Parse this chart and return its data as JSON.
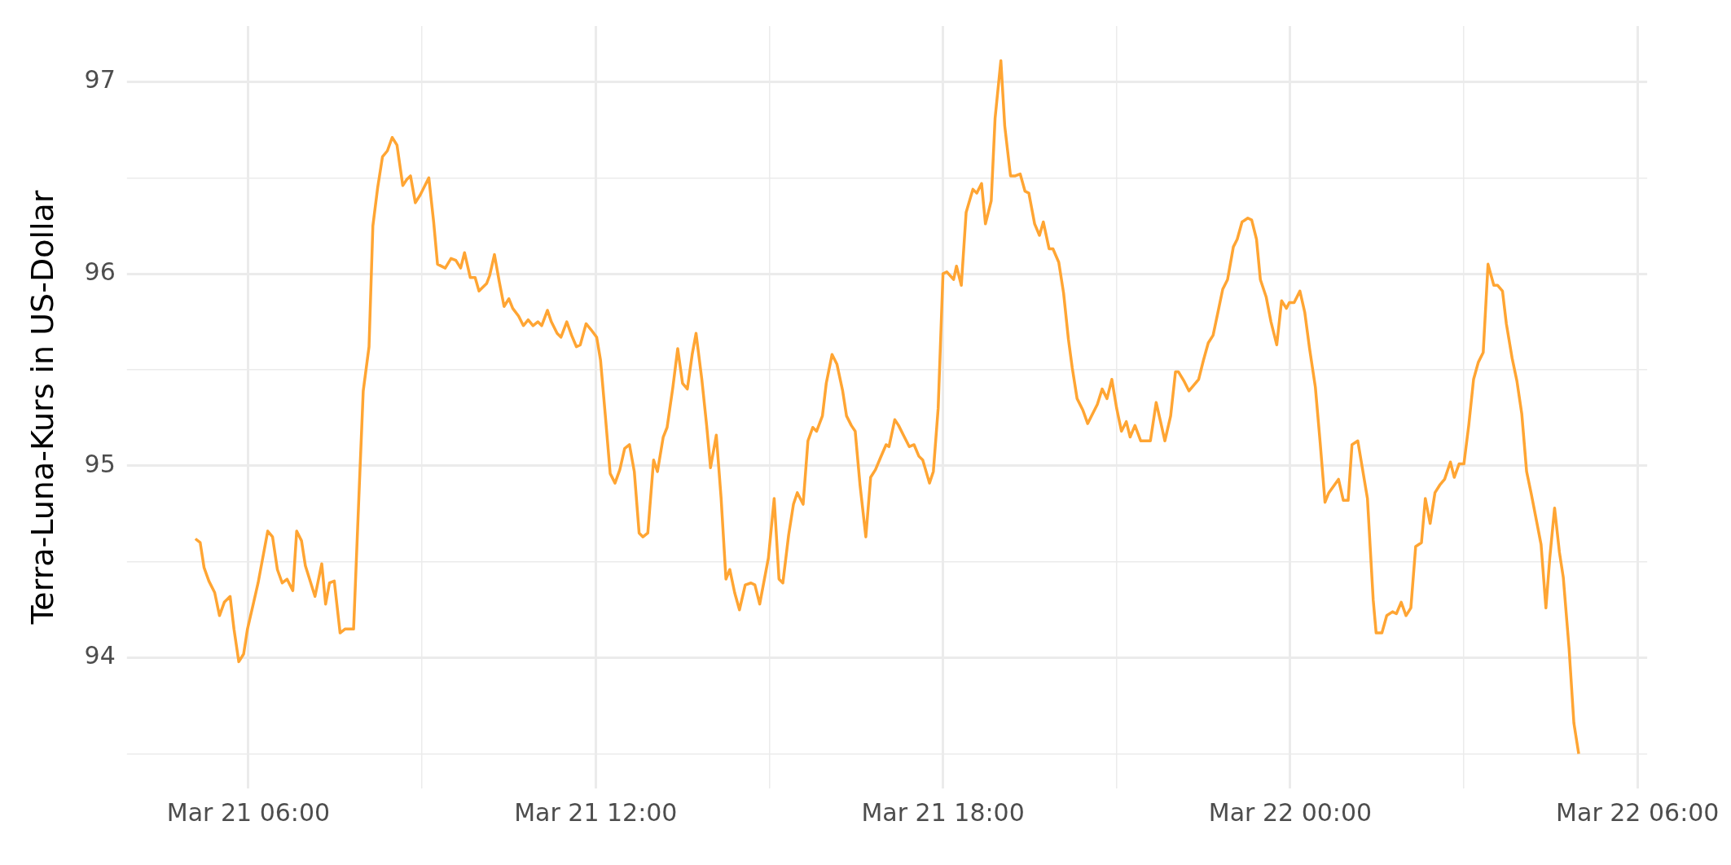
{
  "chart_data": {
    "type": "line",
    "ylabel": "Terra-Luna-Kurs in US-Dollar",
    "grid": true,
    "legend": false,
    "marker": "none",
    "line_style": "solid",
    "xlim": [
      "--03-21T03:54",
      "--03-22T06:10"
    ],
    "ylim": [
      93.32,
      97.29
    ],
    "xticks": [
      {
        "value": "--03-21T06:00",
        "label": "Mar 21 06:00"
      },
      {
        "value": "--03-21T09:00",
        "label": null
      },
      {
        "value": "--03-21T12:00",
        "label": "Mar 21 12:00"
      },
      {
        "value": "--03-21T15:00",
        "label": null
      },
      {
        "value": "--03-21T18:00",
        "label": "Mar 21 18:00"
      },
      {
        "value": "--03-21T21:00",
        "label": null
      },
      {
        "value": "--03-22T00:00",
        "label": "Mar 22 00:00"
      },
      {
        "value": "--03-22T03:00",
        "label": null
      },
      {
        "value": "--03-22T06:00",
        "label": "Mar 22 06:00"
      }
    ],
    "yticks": [
      {
        "value": 93.5,
        "label": null
      },
      94,
      {
        "value": 94.5,
        "label": null
      },
      95,
      {
        "value": 95.5,
        "label": null
      },
      96,
      {
        "value": 96.5,
        "label": null
      },
      97
    ],
    "series": [
      {
        "color": "#ffa533",
        "x": [
          "--03-21T05:05",
          "--03-21T05:10",
          "--03-21T05:14",
          "--03-21T05:19",
          "--03-21T05:25",
          "--03-21T05:30",
          "--03-21T05:35",
          "--03-21T05:41",
          "--03-21T05:45",
          "--03-21T05:50",
          "--03-21T05:55",
          "--03-21T05:59",
          "--03-21T06:05",
          "--03-21T06:10",
          "--03-21T06:20",
          "--03-21T06:25",
          "--03-21T06:30",
          "--03-21T06:35",
          "--03-21T06:40",
          "--03-21T06:46",
          "--03-21T06:50",
          "--03-21T06:55",
          "--03-21T06:59",
          "--03-21T07:09",
          "--03-21T07:16",
          "--03-21T07:20",
          "--03-21T07:24",
          "--03-21T07:29",
          "--03-21T07:35",
          "--03-21T07:40",
          "--03-21T07:49",
          "--03-21T07:55",
          "--03-21T07:59",
          "--03-21T08:05",
          "--03-21T08:09",
          "--03-21T08:14",
          "--03-21T08:19",
          "--03-21T08:24",
          "--03-21T08:29",
          "--03-21T08:34",
          "--03-21T08:40",
          "--03-21T08:44",
          "--03-21T08:48",
          "--03-21T08:53",
          "--03-21T08:58",
          "--03-21T09:07",
          "--03-21T09:12",
          "--03-21T09:16",
          "--03-21T09:24",
          "--03-21T09:30",
          "--03-21T09:35",
          "--03-21T09:40",
          "--03-21T09:44",
          "--03-21T09:50",
          "--03-21T09:55",
          "--03-21T09:59",
          "--03-21T10:07",
          "--03-21T10:10",
          "--03-21T10:15",
          "--03-21T10:20",
          "--03-21T10:25",
          "--03-21T10:30",
          "--03-21T10:34",
          "--03-21T10:40",
          "--03-21T10:45",
          "--03-21T10:50",
          "--03-21T10:55",
          "--03-21T11:00",
          "--03-21T11:04",
          "--03-21T11:10",
          "--03-21T11:14",
          "--03-21T11:20",
          "--03-21T11:24",
          "--03-21T11:30",
          "--03-21T11:35",
          "--03-21T11:40",
          "--03-21T11:44",
          "--03-21T11:50",
          "--03-21T11:55",
          "--03-21T12:01",
          "--03-21T12:05",
          "--03-21T12:10",
          "--03-21T12:15",
          "--03-21T12:20",
          "--03-21T12:25",
          "--03-21T12:30",
          "--03-21T12:35",
          "--03-21T12:40",
          "--03-21T12:45",
          "--03-21T12:49",
          "--03-21T12:54",
          "--03-21T13:00",
          "--03-21T13:04",
          "--03-21T13:10",
          "--03-21T13:14",
          "--03-21T13:20",
          "--03-21T13:25",
          "--03-21T13:30",
          "--03-21T13:35",
          "--03-21T13:40",
          "--03-21T13:44",
          "--03-21T13:50",
          "--03-21T13:55",
          "--03-21T13:59",
          "--03-21T14:05",
          "--03-21T14:10",
          "--03-21T14:15",
          "--03-21T14:19",
          "--03-21T14:24",
          "--03-21T14:29",
          "--03-21T14:35",
          "--03-21T14:41",
          "--03-21T14:45",
          "--03-21T14:50",
          "--03-21T14:59",
          "--03-21T15:05",
          "--03-21T15:10",
          "--03-21T15:14",
          "--03-21T15:20",
          "--03-21T15:25",
          "--03-21T15:29",
          "--03-21T15:35",
          "--03-21T15:40",
          "--03-21T15:45",
          "--03-21T15:49",
          "--03-21T15:55",
          "--03-21T15:59",
          "--03-21T16:05",
          "--03-21T16:10",
          "--03-21T16:16",
          "--03-21T16:20",
          "--03-21T16:25",
          "--03-21T16:29",
          "--03-21T16:34",
          "--03-21T16:40",
          "--03-21T16:45",
          "--03-21T16:50",
          "--03-21T16:55",
          "--03-21T17:01",
          "--03-21T17:04",
          "--03-21T17:10",
          "--03-21T17:14",
          "--03-21T17:19",
          "--03-21T17:25",
          "--03-21T17:30",
          "--03-21T17:35",
          "--03-21T17:39",
          "--03-21T17:46",
          "--03-21T17:50",
          "--03-21T17:55",
          "--03-21T18:00",
          "--03-21T18:04",
          "--03-21T18:11",
          "--03-21T18:14",
          "--03-21T18:19",
          "--03-21T18:24",
          "--03-21T18:31",
          "--03-21T18:35",
          "--03-21T18:40",
          "--03-21T18:44",
          "--03-21T18:50",
          "--03-21T18:54",
          "--03-21T19:00",
          "--03-21T19:04",
          "--03-21T19:10",
          "--03-21T19:15",
          "--03-21T19:20",
          "--03-21T19:25",
          "--03-21T19:29",
          "--03-21T19:35",
          "--03-21T19:40",
          "--03-21T19:44",
          "--03-21T19:50",
          "--03-21T19:54",
          "--03-21T20:00",
          "--03-21T20:05",
          "--03-21T20:10",
          "--03-21T20:14",
          "--03-21T20:19",
          "--03-21T20:25",
          "--03-21T20:30",
          "--03-21T20:35",
          "--03-21T20:40",
          "--03-21T20:45",
          "--03-21T20:50",
          "--03-21T20:55",
          "--03-21T21:00",
          "--03-21T21:05",
          "--03-21T21:10",
          "--03-21T21:14",
          "--03-21T21:19",
          "--03-21T21:25",
          "--03-21T21:35",
          "--03-21T21:41",
          "--03-21T21:46",
          "--03-21T21:50",
          "--03-21T21:56",
          "--03-21T22:01",
          "--03-21T22:04",
          "--03-21T22:10",
          "--03-21T22:15",
          "--03-21T22:20",
          "--03-21T22:25",
          "--03-21T22:30",
          "--03-21T22:35",
          "--03-21T22:40",
          "--03-21T22:45",
          "--03-21T22:50",
          "--03-21T22:55",
          "--03-21T23:01",
          "--03-21T23:05",
          "--03-21T23:10",
          "--03-21T23:16",
          "--03-21T23:20",
          "--03-21T23:25",
          "--03-21T23:29",
          "--03-21T23:35",
          "--03-21T23:40",
          "--03-21T23:46",
          "--03-21T23:51",
          "--03-21T23:56",
          "--03-21T23:59",
          "--03-22T00:04",
          "--03-22T00:10",
          "--03-22T00:15",
          "--03-22T00:20",
          "--03-22T00:26",
          "--03-22T00:31",
          "--03-22T00:36",
          "--03-22T00:40",
          "--03-22T00:50",
          "--03-22T00:55",
          "--03-22T01:00",
          "--03-22T01:04",
          "--03-22T01:10",
          "--03-22T01:20",
          "--03-22T01:26",
          "--03-22T01:29",
          "--03-22T01:35",
          "--03-22T01:40",
          "--03-22T01:46",
          "--03-22T01:50",
          "--03-22T01:55",
          "--03-22T02:00",
          "--03-22T02:05",
          "--03-22T02:10",
          "--03-22T02:16",
          "--03-22T02:20",
          "--03-22T02:25",
          "--03-22T02:30",
          "--03-22T02:35",
          "--03-22T02:40",
          "--03-22T02:46",
          "--03-22T02:50",
          "--03-22T02:55",
          "--03-22T03:00",
          "--03-22T03:05",
          "--03-22T03:10",
          "--03-22T03:15",
          "--03-22T03:20",
          "--03-22T03:25",
          "--03-22T03:31",
          "--03-22T03:35",
          "--03-22T03:40",
          "--03-22T03:44",
          "--03-22T03:50",
          "--03-22T03:55",
          "--03-22T04:00",
          "--03-22T04:05",
          "--03-22T04:10",
          "--03-22T04:15",
          "--03-22T04:20",
          "--03-22T04:25",
          "--03-22T04:29",
          "--03-22T04:34",
          "--03-22T04:39",
          "--03-22T04:43",
          "--03-22T04:49",
          "--03-22T04:54",
          "--03-22T04:59"
        ],
        "values": [
          94.62,
          94.6,
          94.47,
          94.4,
          94.34,
          94.22,
          94.29,
          94.32,
          94.15,
          93.98,
          94.02,
          94.15,
          94.28,
          94.39,
          94.66,
          94.63,
          94.46,
          94.39,
          94.41,
          94.35,
          94.66,
          94.61,
          94.48,
          94.32,
          94.49,
          94.28,
          94.39,
          94.4,
          94.13,
          94.15,
          94.15,
          94.9,
          95.39,
          95.62,
          96.25,
          96.45,
          96.61,
          96.64,
          96.71,
          96.67,
          96.46,
          96.49,
          96.51,
          96.37,
          96.41,
          96.5,
          96.27,
          96.05,
          96.03,
          96.08,
          96.07,
          96.03,
          96.11,
          95.98,
          95.98,
          95.91,
          95.95,
          95.99,
          96.1,
          95.96,
          95.83,
          95.87,
          95.82,
          95.78,
          95.73,
          95.76,
          95.73,
          95.75,
          95.73,
          95.81,
          95.75,
          95.69,
          95.67,
          95.75,
          95.68,
          95.62,
          95.63,
          95.74,
          95.71,
          95.67,
          95.55,
          95.26,
          94.96,
          94.91,
          94.98,
          95.09,
          95.11,
          94.97,
          94.65,
          94.63,
          94.65,
          95.03,
          94.97,
          95.15,
          95.2,
          95.41,
          95.61,
          95.43,
          95.4,
          95.58,
          95.69,
          95.45,
          95.21,
          94.99,
          95.16,
          94.83,
          94.41,
          94.46,
          94.34,
          94.25,
          94.38,
          94.39,
          94.38,
          94.28,
          94.52,
          94.83,
          94.41,
          94.39,
          94.64,
          94.8,
          94.86,
          94.8,
          95.13,
          95.2,
          95.18,
          95.26,
          95.43,
          95.58,
          95.53,
          95.39,
          95.26,
          95.21,
          95.18,
          94.9,
          94.63,
          94.94,
          94.98,
          95.04,
          95.11,
          95.1,
          95.24,
          95.21,
          95.16,
          95.1,
          95.11,
          95.05,
          95.03,
          94.91,
          94.97,
          95.3,
          96.0,
          96.01,
          95.97,
          96.04,
          95.94,
          96.32,
          96.44,
          96.42,
          96.47,
          96.26,
          96.38,
          96.81,
          97.11,
          96.77,
          96.51,
          96.51,
          96.52,
          96.43,
          96.42,
          96.26,
          96.2,
          96.27,
          96.13,
          96.13,
          96.06,
          95.9,
          95.66,
          95.51,
          95.35,
          95.29,
          95.22,
          95.27,
          95.32,
          95.4,
          95.35,
          95.45,
          95.3,
          95.18,
          95.23,
          95.15,
          95.21,
          95.13,
          95.13,
          95.33,
          95.22,
          95.13,
          95.26,
          95.49,
          95.49,
          95.44,
          95.39,
          95.42,
          95.45,
          95.55,
          95.64,
          95.68,
          95.8,
          95.92,
          95.97,
          96.14,
          96.18,
          96.27,
          96.29,
          96.28,
          96.18,
          95.97,
          95.88,
          95.75,
          95.63,
          95.86,
          95.82,
          95.85,
          95.85,
          95.91,
          95.8,
          95.61,
          95.41,
          95.12,
          94.81,
          94.86,
          94.93,
          94.82,
          94.82,
          95.11,
          95.13,
          94.83,
          94.3,
          94.13,
          94.13,
          94.22,
          94.24,
          94.23,
          94.29,
          94.22,
          94.26,
          94.58,
          94.6,
          94.83,
          94.7,
          94.86,
          94.9,
          94.93,
          95.02,
          94.94,
          95.01,
          95.01,
          95.21,
          95.45,
          95.54,
          95.59,
          96.05,
          95.94,
          95.94,
          95.91,
          95.74,
          95.56,
          95.44,
          95.27,
          94.97,
          94.85,
          94.72,
          94.59,
          94.26,
          94.52,
          94.78,
          94.55,
          94.42,
          94.05,
          93.66,
          93.5
        ]
      }
    ]
  }
}
